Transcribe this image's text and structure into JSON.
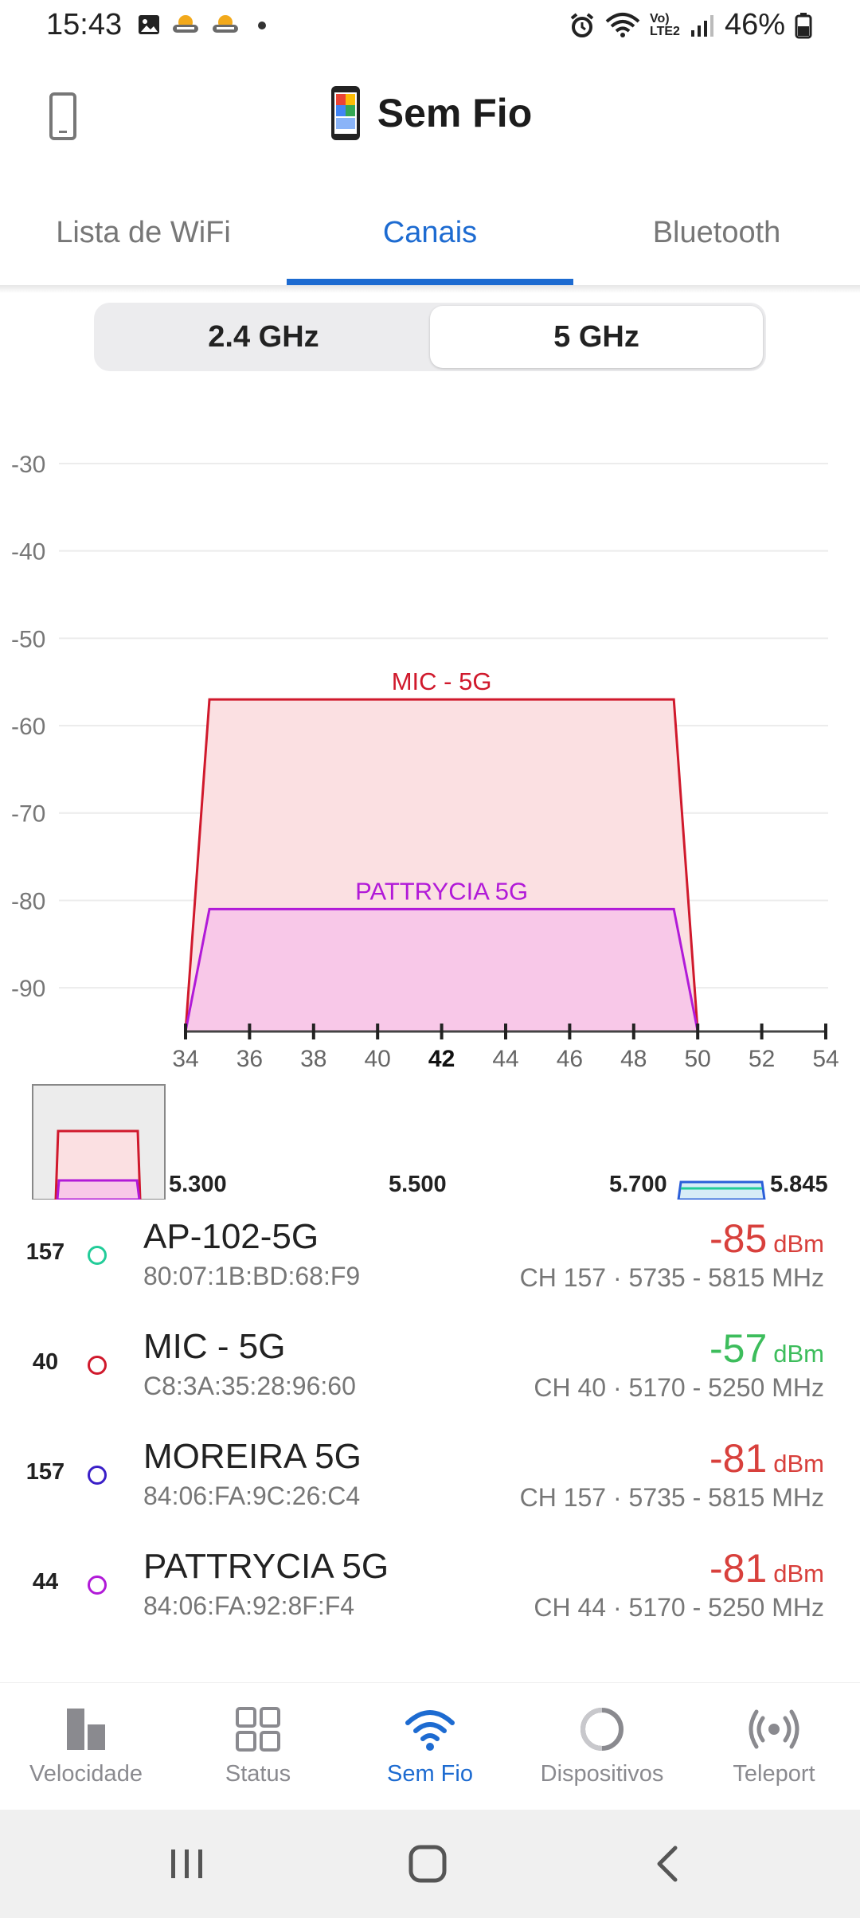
{
  "status_bar": {
    "time": "15:43",
    "battery": "46%",
    "icons": [
      "gallery-icon",
      "weather-icon",
      "weather-icon",
      "dot-icon",
      "alarm-icon",
      "wifi-icon",
      "volte-icon",
      "signal-icon",
      "battery-icon"
    ],
    "volte_top": "Vo)",
    "volte_bottom": "LTE2"
  },
  "header": {
    "title": "Sem Fio"
  },
  "tabs": [
    {
      "label": "Lista de WiFi",
      "active": false
    },
    {
      "label": "Canais",
      "active": true
    },
    {
      "label": "Bluetooth",
      "active": false
    }
  ],
  "band_selector": {
    "options": [
      "2.4 GHz",
      "5 GHz"
    ],
    "selected": "5 GHz"
  },
  "chart_data": {
    "type": "area",
    "ylim": [
      -95,
      -28
    ],
    "yticks": [
      -30,
      -40,
      -50,
      -60,
      -70,
      -80,
      -90
    ],
    "xlim": [
      34,
      54
    ],
    "xticks": [
      34,
      36,
      38,
      40,
      42,
      44,
      46,
      48,
      50,
      52,
      54
    ],
    "highlight_tick": 42,
    "grid": true,
    "series": [
      {
        "name": "MIC - 5G",
        "channel": 42,
        "channels_span": [
          34,
          50
        ],
        "signal": -57,
        "color": "#d0192c",
        "fill": "#fbe0e2"
      },
      {
        "name": "PATTRYCIA 5G",
        "channel": 42,
        "channels_span": [
          34,
          50
        ],
        "signal": -81,
        "color": "#b11ad8",
        "fill": "#f8c8e8"
      }
    ]
  },
  "minimap": {
    "labels": [
      "5.300",
      "5.500",
      "5.700",
      "5.845"
    ]
  },
  "networks": [
    {
      "channel": "157",
      "name": "AP-102-5G",
      "mac": "80:07:1B:BD:68:F9",
      "signal": "-85",
      "unit": "dBm",
      "freq": "CH 157 · 5735 - 5815 MHz",
      "dot_color": "#22cc99",
      "strong": false
    },
    {
      "channel": "40",
      "name": "MIC - 5G",
      "mac": "C8:3A:35:28:96:60",
      "signal": "-57",
      "unit": "dBm",
      "freq": "CH 40 · 5170 - 5250 MHz",
      "dot_color": "#d0192c",
      "strong": true
    },
    {
      "channel": "157",
      "name": "MOREIRA 5G",
      "mac": "84:06:FA:9C:26:C4",
      "signal": "-81",
      "unit": "dBm",
      "freq": "CH 157 · 5735 - 5815 MHz",
      "dot_color": "#3a1fc8",
      "strong": false
    },
    {
      "channel": "44",
      "name": "PATTRYCIA 5G",
      "mac": "84:06:FA:92:8F:F4",
      "signal": "-81",
      "unit": "dBm",
      "freq": "CH 44 · 5170 - 5250 MHz",
      "dot_color": "#b11ad8",
      "strong": false
    }
  ],
  "bottom_nav": [
    {
      "label": "Velocidade",
      "icon": "speed-bars-icon",
      "active": false
    },
    {
      "label": "Status",
      "icon": "grid-icon",
      "active": false
    },
    {
      "label": "Sem Fio",
      "icon": "wifi-icon",
      "active": true
    },
    {
      "label": "Dispositivos",
      "icon": "devices-ring-icon",
      "active": false
    },
    {
      "label": "Teleport",
      "icon": "teleport-icon",
      "active": false
    }
  ],
  "colors": {
    "accent": "#1d6bd1",
    "signal_weak": "#d8403c",
    "signal_strong": "#3dbd5c"
  }
}
